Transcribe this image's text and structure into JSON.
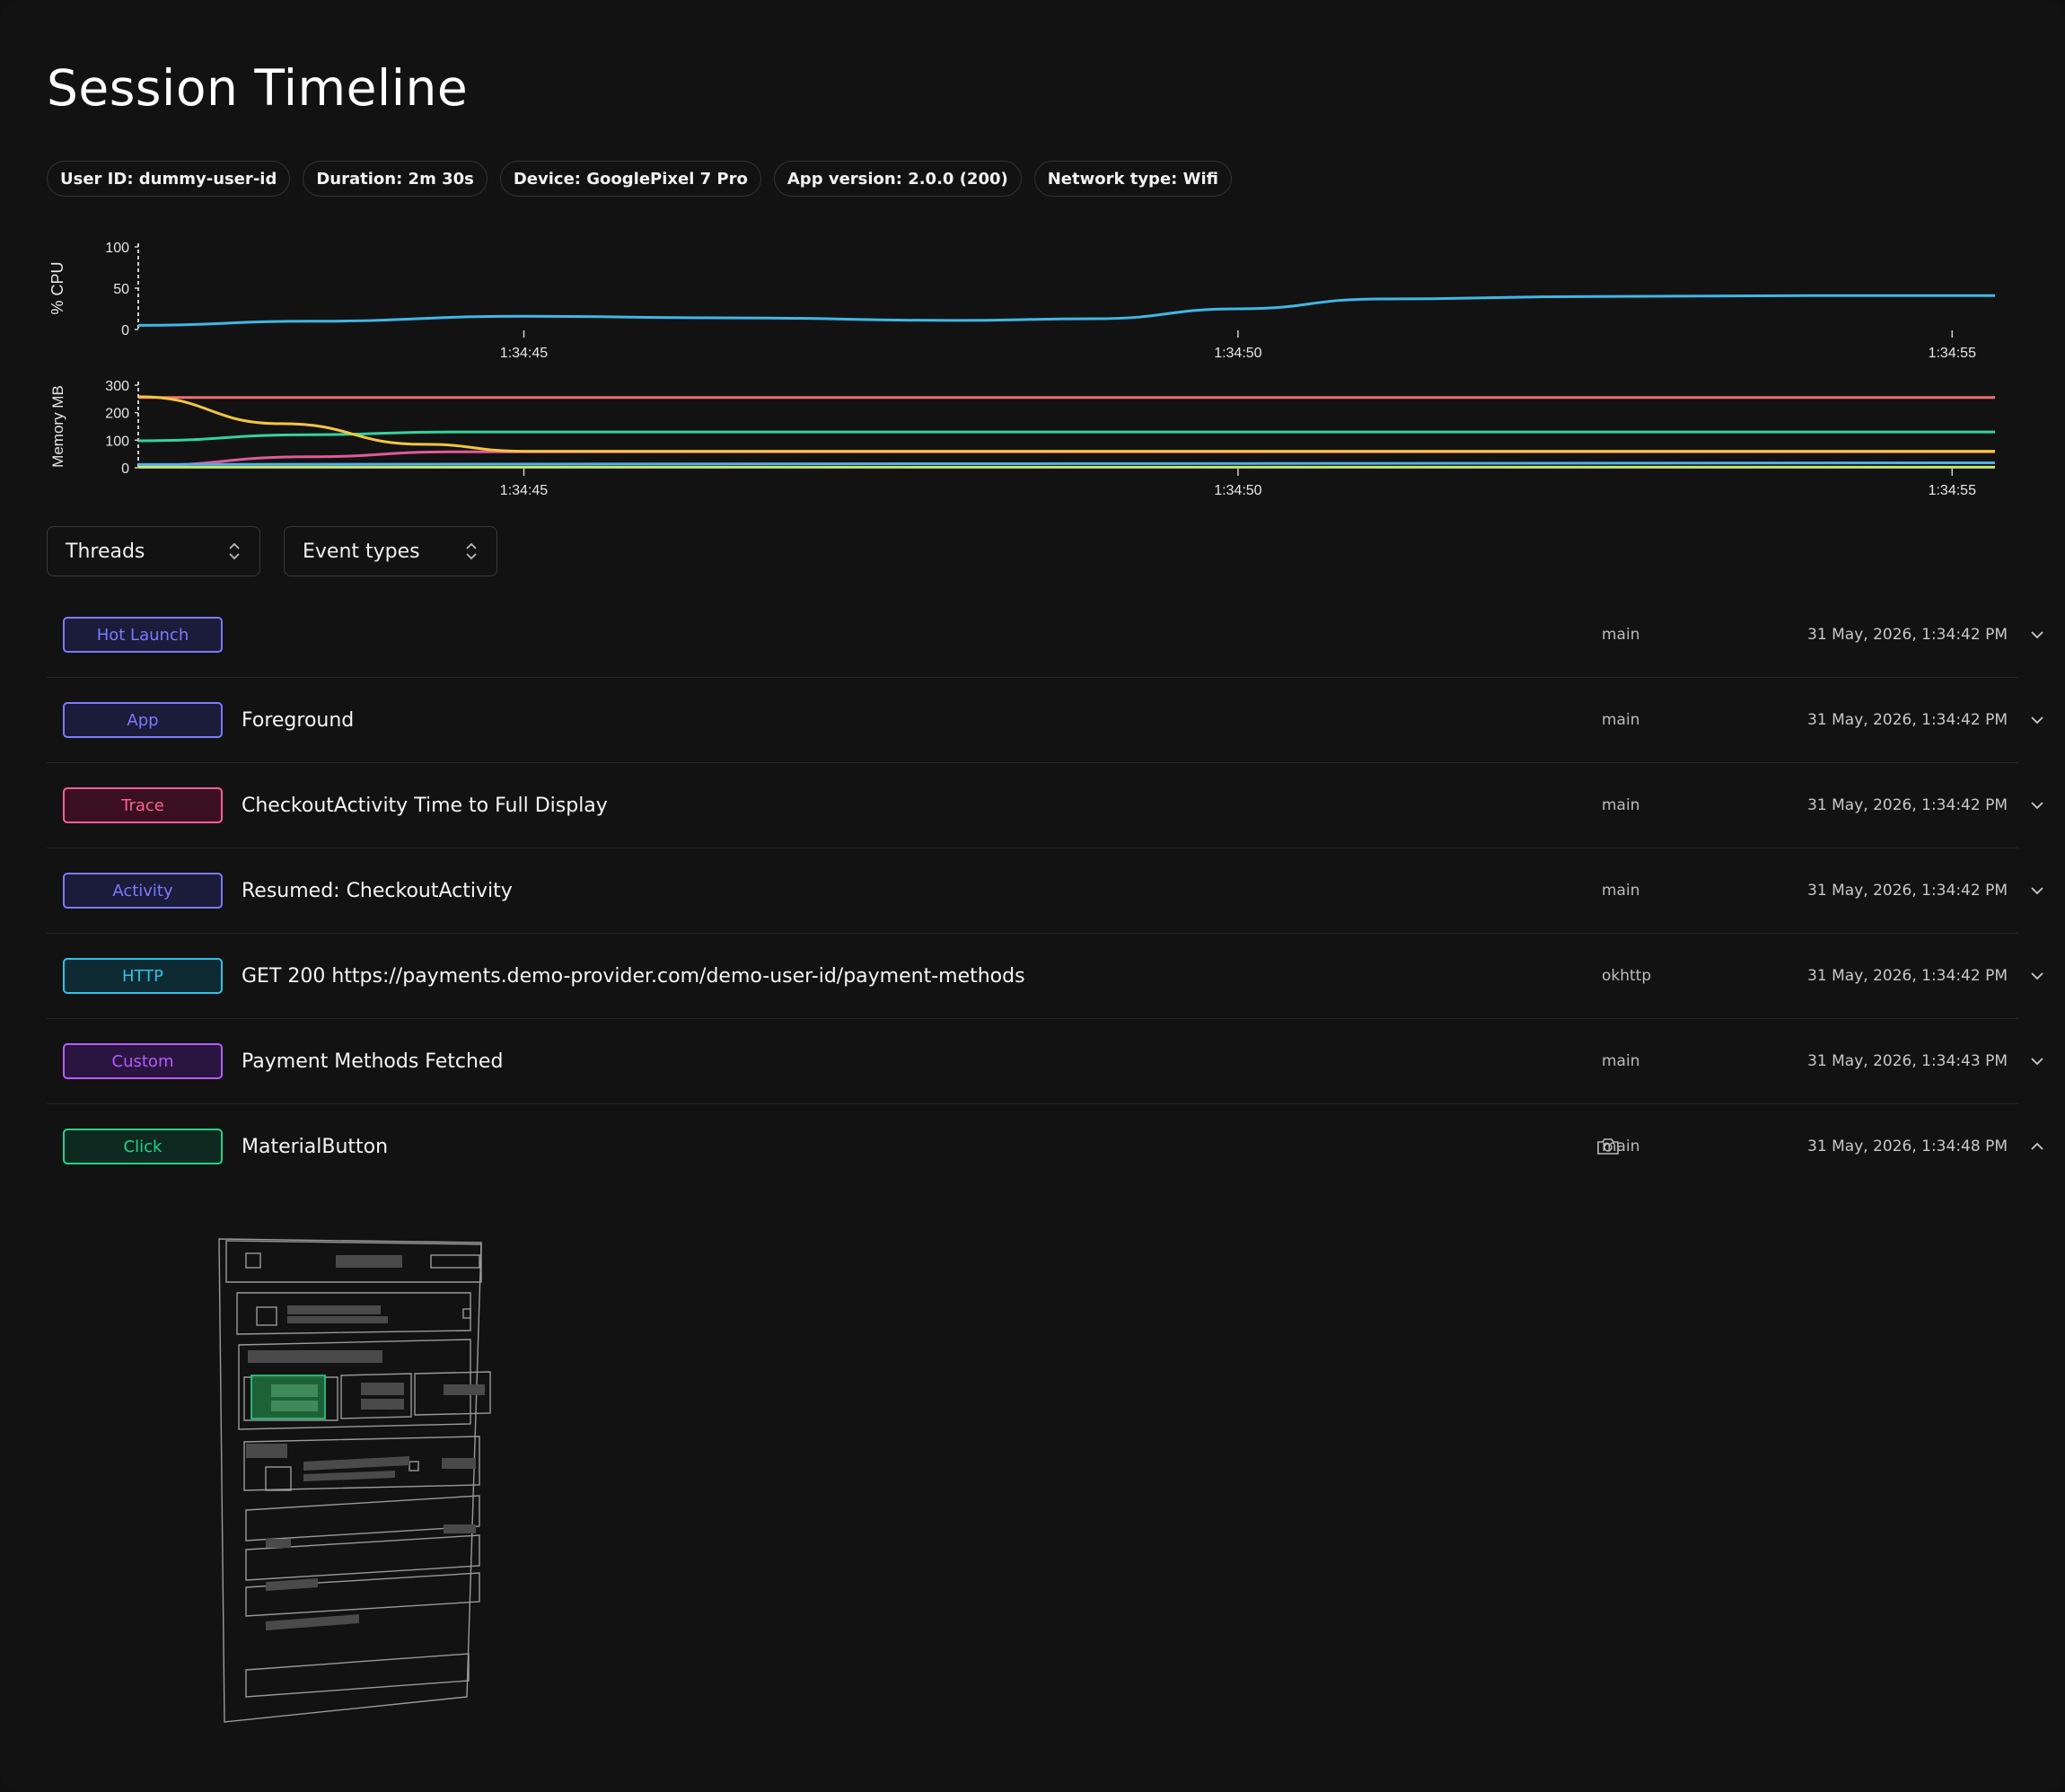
{
  "page": {
    "title": "Session Timeline"
  },
  "session_info": [
    "User ID: dummy-user-id",
    "Duration: 2m 30s",
    "Device: GooglePixel 7 Pro",
    "App version: 2.0.0 (200)",
    "Network type: Wifi"
  ],
  "chart_data": [
    {
      "type": "line",
      "ylabel": "% CPU",
      "ylim": [
        0,
        100
      ],
      "yticks": [
        "100",
        "50",
        "0"
      ],
      "xticks": [
        "1:34:45",
        "1:34:50",
        "1:34:55"
      ],
      "x_range": [
        "1:34:42.3",
        "1:34:55.3"
      ],
      "series": [
        {
          "color": "#3fb8e6",
          "x": [
            42.3,
            43.5,
            45.0,
            46.5,
            48.0,
            49.0,
            50.0,
            51.0,
            52.5,
            54.0,
            55.3
          ],
          "values": [
            5,
            10,
            16,
            14,
            11,
            13,
            25,
            37,
            40,
            41,
            41
          ]
        }
      ],
      "grid": false
    },
    {
      "type": "line",
      "ylabel": "Memory MB",
      "ylim": [
        0,
        300
      ],
      "yticks": [
        "300",
        "200",
        "100",
        "0"
      ],
      "xticks": [
        "1:34:45",
        "1:34:50",
        "1:34:55"
      ],
      "x_range": [
        "1:34:42.3",
        "1:34:55.3"
      ],
      "series": [
        {
          "color": "#f07070",
          "x": [
            42.3,
            55.3
          ],
          "values": [
            255,
            255
          ]
        },
        {
          "color": "#33d39e",
          "x": [
            42.3,
            43.5,
            44.5,
            55.3
          ],
          "values": [
            98,
            120,
            130,
            130
          ]
        },
        {
          "color": "#e05a9a",
          "x": [
            42.3,
            43.5,
            44.5,
            55.3
          ],
          "values": [
            8,
            40,
            58,
            58
          ]
        },
        {
          "color": "#f5c542",
          "x": [
            42.3,
            43.3,
            44.3,
            45.0,
            55.3
          ],
          "values": [
            258,
            160,
            85,
            60,
            60
          ]
        },
        {
          "color": "#4fb0e8",
          "x": [
            42.3,
            55.3
          ],
          "values": [
            12,
            18
          ]
        },
        {
          "color": "#c6e66a",
          "x": [
            42.3,
            55.3
          ],
          "values": [
            2,
            2
          ]
        }
      ],
      "grid": false
    }
  ],
  "filters": {
    "threads_label": "Threads",
    "event_types_label": "Event types"
  },
  "events": [
    {
      "type": "Hot Launch",
      "description": "",
      "thread": "main",
      "time": "31 May, 2026, 1:34:42 PM",
      "color": "#7b7bff",
      "bg": "#1b1b3a",
      "expanded": false,
      "has_screenshot": false
    },
    {
      "type": "App",
      "description": "Foreground",
      "thread": "main",
      "time": "31 May, 2026, 1:34:42 PM",
      "color": "#7b7bff",
      "bg": "#1b1b3a",
      "expanded": false,
      "has_screenshot": false
    },
    {
      "type": "Trace",
      "description": "CheckoutActivity Time to Full Display",
      "thread": "main",
      "time": "31 May, 2026, 1:34:42 PM",
      "color": "#ff5f9a",
      "bg": "#3a1020",
      "expanded": false,
      "has_screenshot": false
    },
    {
      "type": "Activity",
      "description": "Resumed: CheckoutActivity",
      "thread": "main",
      "time": "31 May, 2026, 1:34:42 PM",
      "color": "#7b7bff",
      "bg": "#1b1b3a",
      "expanded": false,
      "has_screenshot": false
    },
    {
      "type": "HTTP",
      "description": "GET 200 https://payments.demo-provider.com/demo-user-id/payment-methods",
      "thread": "okhttp",
      "time": "31 May, 2026, 1:34:42 PM",
      "color": "#2ec3e6",
      "bg": "#0e2a33",
      "expanded": false,
      "has_screenshot": false
    },
    {
      "type": "Custom",
      "description": "Payment Methods Fetched",
      "thread": "main",
      "time": "31 May, 2026, 1:34:43 PM",
      "color": "#b65cff",
      "bg": "#2a1440",
      "expanded": false,
      "has_screenshot": false
    },
    {
      "type": "Click",
      "description": "MaterialButton",
      "thread": "main",
      "time": "31 May, 2026, 1:34:48 PM",
      "color": "#24d08a",
      "bg": "#0e2a20",
      "expanded": true,
      "has_screenshot": true
    }
  ],
  "icons": {
    "select_arrows": "chevron-up-down-icon",
    "collapsed": "chevron-down-icon",
    "expanded": "chevron-up-icon",
    "screenshot": "camera-icon"
  }
}
